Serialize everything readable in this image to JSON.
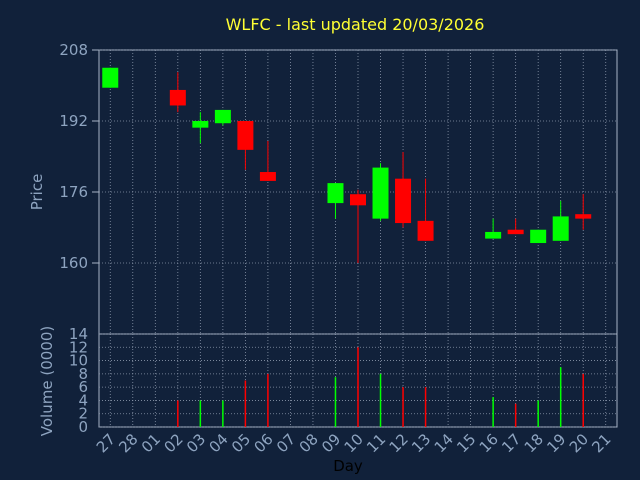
{
  "chart_data": [
    {
      "type": "candlestick",
      "title": "WLFC - last updated 20/03/2026",
      "ylabel": "Price",
      "xlabel": "Day",
      "ylim": [
        144,
        208
      ],
      "y_ticks": [
        "208",
        "192",
        "176",
        "160"
      ],
      "y_tick_values": [
        208,
        192,
        176,
        160
      ],
      "x_ticks": [
        "27",
        "28",
        "01",
        "02",
        "03",
        "04",
        "05",
        "06",
        "07",
        "08",
        "09",
        "10",
        "11",
        "12",
        "13",
        "14",
        "15",
        "16",
        "17",
        "18",
        "19",
        "20",
        "21"
      ],
      "grid": true,
      "up_color": "#00ff00",
      "down_color": "#ff0000",
      "candles": [
        {
          "day": "27",
          "open": 199.5,
          "close": 204,
          "high": 204,
          "low": 199.5
        },
        {
          "day": "02",
          "open": 199,
          "close": 195.5,
          "high": 203,
          "low": 194
        },
        {
          "day": "03",
          "open": 190.5,
          "close": 192,
          "high": 194,
          "low": 187
        },
        {
          "day": "04",
          "open": 191.5,
          "close": 194.5,
          "high": 194.5,
          "low": 191
        },
        {
          "day": "05",
          "open": 192,
          "close": 185.5,
          "high": 192,
          "low": 181
        },
        {
          "day": "06",
          "open": 180.5,
          "close": 178.5,
          "high": 187.5,
          "low": 178.5
        },
        {
          "day": "09",
          "open": 173.5,
          "close": 178,
          "high": 178,
          "low": 170
        },
        {
          "day": "10",
          "open": 175.5,
          "close": 173,
          "high": 176.5,
          "low": 160
        },
        {
          "day": "11",
          "open": 170,
          "close": 181.5,
          "high": 182.5,
          "low": 169.5
        },
        {
          "day": "12",
          "open": 179,
          "close": 169,
          "high": 185,
          "low": 168
        },
        {
          "day": "13",
          "open": 169.5,
          "close": 165,
          "high": 179,
          "low": 165
        },
        {
          "day": "16",
          "open": 165.5,
          "close": 167,
          "high": 170,
          "low": 165.5
        },
        {
          "day": "17",
          "open": 167.5,
          "close": 166.5,
          "high": 170,
          "low": 166.5
        },
        {
          "day": "18",
          "open": 164.5,
          "close": 167.5,
          "high": 167.5,
          "low": 164.5
        },
        {
          "day": "19",
          "open": 165,
          "close": 170.5,
          "high": 174,
          "low": 165
        },
        {
          "day": "20",
          "open": 171,
          "close": 170,
          "high": 175.5,
          "low": 167.5
        }
      ]
    },
    {
      "type": "bar",
      "ylabel": "Volume (0000)",
      "ylim": [
        0,
        14
      ],
      "y_ticks": [
        "14",
        "12",
        "10",
        "8",
        "6",
        "4",
        "2",
        "0"
      ],
      "y_tick_values": [
        14,
        12,
        10,
        8,
        6,
        4,
        2,
        0
      ],
      "grid": true,
      "bars": [
        {
          "day": "02",
          "value": 4,
          "color": "#ff0000"
        },
        {
          "day": "03",
          "value": 4,
          "color": "#00ff00"
        },
        {
          "day": "04",
          "value": 4,
          "color": "#00ff00"
        },
        {
          "day": "05",
          "value": 7,
          "color": "#ff0000"
        },
        {
          "day": "06",
          "value": 8,
          "color": "#ff0000"
        },
        {
          "day": "09",
          "value": 7.5,
          "color": "#00ff00"
        },
        {
          "day": "10",
          "value": 12,
          "color": "#ff0000"
        },
        {
          "day": "11",
          "value": 8,
          "color": "#00ff00"
        },
        {
          "day": "12",
          "value": 6,
          "color": "#ff0000"
        },
        {
          "day": "13",
          "value": 6,
          "color": "#ff0000"
        },
        {
          "day": "16",
          "value": 4.5,
          "color": "#00ff00"
        },
        {
          "day": "17",
          "value": 3.5,
          "color": "#ff0000"
        },
        {
          "day": "18",
          "value": 4,
          "color": "#00ff00"
        },
        {
          "day": "19",
          "value": 9,
          "color": "#00ff00"
        },
        {
          "day": "20",
          "value": 8,
          "color": "#ff0000"
        }
      ]
    }
  ]
}
